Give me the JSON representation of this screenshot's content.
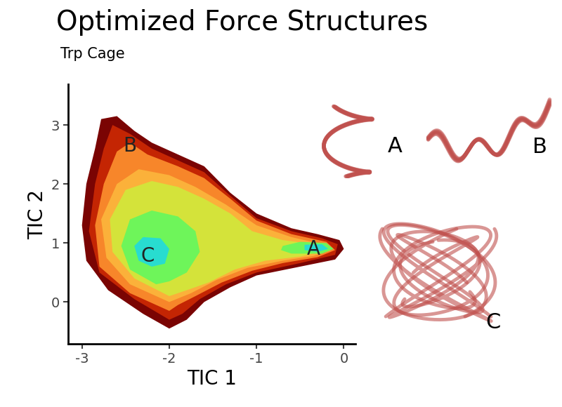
{
  "chart_data": {
    "type": "filled_contour",
    "title": "Optimized Force Structures",
    "subtitle": "Trp Cage",
    "x_label": "TIC 1",
    "y_label": "TIC 2",
    "xlim": [
      -3.16,
      0.13
    ],
    "ylim": [
      -0.71,
      3.69
    ],
    "xticks": [
      -3,
      -2,
      -1,
      0
    ],
    "yticks": [
      0,
      1,
      2,
      3
    ],
    "regions": [
      {
        "color": "#7a0403",
        "polygon": [
          [
            -2.0,
            -0.45
          ],
          [
            -2.3,
            -0.2
          ],
          [
            -2.7,
            0.2
          ],
          [
            -2.95,
            0.7
          ],
          [
            -3.0,
            1.3
          ],
          [
            -2.95,
            2.0
          ],
          [
            -2.85,
            2.6
          ],
          [
            -2.78,
            3.1
          ],
          [
            -2.6,
            3.15
          ],
          [
            -2.4,
            2.9
          ],
          [
            -2.2,
            2.7
          ],
          [
            -1.9,
            2.5
          ],
          [
            -1.6,
            2.3
          ],
          [
            -1.3,
            1.85
          ],
          [
            -1.0,
            1.5
          ],
          [
            -0.6,
            1.25
          ],
          [
            -0.3,
            1.15
          ],
          [
            -0.05,
            1.05
          ],
          [
            0.0,
            0.9
          ],
          [
            -0.1,
            0.72
          ],
          [
            -0.5,
            0.6
          ],
          [
            -1.0,
            0.45
          ],
          [
            -1.3,
            0.25
          ],
          [
            -1.6,
            0.0
          ],
          [
            -1.8,
            -0.3
          ]
        ]
      },
      {
        "color": "#c42503",
        "polygon": [
          [
            -2.0,
            -0.3
          ],
          [
            -2.4,
            0.05
          ],
          [
            -2.8,
            0.5
          ],
          [
            -2.92,
            1.2
          ],
          [
            -2.85,
            2.0
          ],
          [
            -2.75,
            2.6
          ],
          [
            -2.65,
            3.0
          ],
          [
            -2.45,
            2.85
          ],
          [
            -2.2,
            2.6
          ],
          [
            -1.9,
            2.4
          ],
          [
            -1.6,
            2.2
          ],
          [
            -1.3,
            1.8
          ],
          [
            -1.0,
            1.42
          ],
          [
            -0.6,
            1.2
          ],
          [
            -0.25,
            1.08
          ],
          [
            -0.07,
            0.98
          ],
          [
            -0.1,
            0.8
          ],
          [
            -0.5,
            0.66
          ],
          [
            -1.0,
            0.5
          ],
          [
            -1.35,
            0.3
          ],
          [
            -1.65,
            0.05
          ],
          [
            -1.85,
            -0.2
          ]
        ]
      },
      {
        "color": "#f7862a",
        "polygon": [
          [
            -2.0,
            -0.15
          ],
          [
            -2.45,
            0.15
          ],
          [
            -2.8,
            0.6
          ],
          [
            -2.85,
            1.3
          ],
          [
            -2.75,
            2.0
          ],
          [
            -2.6,
            2.55
          ],
          [
            -2.45,
            2.7
          ],
          [
            -2.25,
            2.5
          ],
          [
            -1.9,
            2.3
          ],
          [
            -1.6,
            2.1
          ],
          [
            -1.3,
            1.75
          ],
          [
            -1.0,
            1.38
          ],
          [
            -0.6,
            1.15
          ],
          [
            -0.2,
            1.02
          ],
          [
            -0.1,
            0.88
          ],
          [
            -0.3,
            0.76
          ],
          [
            -0.7,
            0.66
          ],
          [
            -1.05,
            0.53
          ],
          [
            -1.4,
            0.33
          ],
          [
            -1.7,
            0.1
          ],
          [
            -1.9,
            -0.05
          ]
        ]
      },
      {
        "color": "#fbb13a",
        "polygon": [
          [
            -2.0,
            0.0
          ],
          [
            -2.45,
            0.3
          ],
          [
            -2.72,
            0.75
          ],
          [
            -2.78,
            1.4
          ],
          [
            -2.6,
            2.0
          ],
          [
            -2.35,
            2.25
          ],
          [
            -2.0,
            2.15
          ],
          [
            -1.7,
            1.95
          ],
          [
            -1.35,
            1.65
          ],
          [
            -1.0,
            1.3
          ],
          [
            -0.6,
            1.1
          ],
          [
            -0.25,
            0.98
          ],
          [
            -0.15,
            0.87
          ],
          [
            -0.35,
            0.78
          ],
          [
            -0.7,
            0.7
          ],
          [
            -1.1,
            0.58
          ],
          [
            -1.45,
            0.38
          ],
          [
            -1.75,
            0.15
          ]
        ]
      },
      {
        "color": "#d4e33a",
        "polygon": [
          [
            -2.0,
            0.1
          ],
          [
            -2.4,
            0.4
          ],
          [
            -2.65,
            0.85
          ],
          [
            -2.68,
            1.4
          ],
          [
            -2.5,
            1.9
          ],
          [
            -2.2,
            2.05
          ],
          [
            -1.9,
            1.95
          ],
          [
            -1.6,
            1.75
          ],
          [
            -1.3,
            1.5
          ],
          [
            -1.05,
            1.2
          ],
          [
            -0.7,
            1.05
          ],
          [
            -0.35,
            0.98
          ],
          [
            -0.28,
            0.85
          ],
          [
            -0.5,
            0.77
          ],
          [
            -0.9,
            0.7
          ],
          [
            -1.25,
            0.55
          ],
          [
            -1.55,
            0.33
          ],
          [
            -1.8,
            0.2
          ]
        ]
      },
      {
        "color": "#6ef55a",
        "polygon": [
          [
            -2.15,
            0.3
          ],
          [
            -2.45,
            0.55
          ],
          [
            -2.55,
            0.95
          ],
          [
            -2.45,
            1.4
          ],
          [
            -2.2,
            1.55
          ],
          [
            -1.9,
            1.45
          ],
          [
            -1.7,
            1.2
          ],
          [
            -1.65,
            0.85
          ],
          [
            -1.8,
            0.5
          ],
          [
            -2.0,
            0.35
          ]
        ]
      },
      {
        "color": "#6ef55a",
        "polygon": [
          [
            -0.7,
            0.95
          ],
          [
            -0.5,
            1.02
          ],
          [
            -0.2,
            1.0
          ],
          [
            -0.12,
            0.9
          ],
          [
            -0.25,
            0.82
          ],
          [
            -0.6,
            0.82
          ],
          [
            -0.72,
            0.88
          ]
        ]
      },
      {
        "color": "#28dcd0",
        "polygon": [
          [
            -2.35,
            0.7
          ],
          [
            -2.4,
            0.95
          ],
          [
            -2.3,
            1.1
          ],
          [
            -2.1,
            1.08
          ],
          [
            -2.0,
            0.9
          ],
          [
            -2.05,
            0.65
          ],
          [
            -2.2,
            0.6
          ]
        ]
      },
      {
        "color": "#28dcd0",
        "polygon": [
          [
            -0.45,
            0.97
          ],
          [
            -0.25,
            0.98
          ],
          [
            -0.18,
            0.9
          ],
          [
            -0.3,
            0.85
          ],
          [
            -0.45,
            0.88
          ]
        ]
      }
    ],
    "annotations": [
      {
        "text": "A",
        "x": -0.35,
        "y": 0.9
      },
      {
        "text": "B",
        "x": -2.45,
        "y": 2.65
      },
      {
        "text": "C",
        "x": -2.25,
        "y": 0.78
      }
    ],
    "structures": [
      "A",
      "B",
      "C"
    ]
  }
}
